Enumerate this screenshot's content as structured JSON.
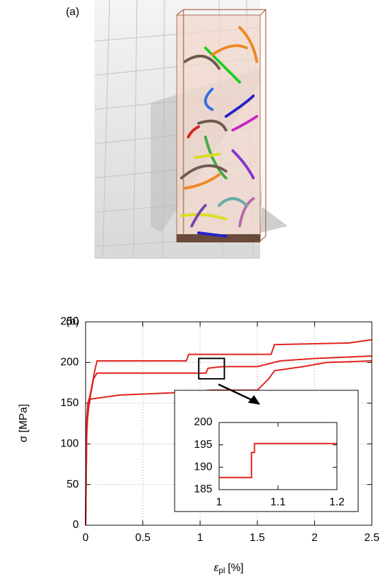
{
  "panel_labels": [
    "(a)",
    "(b)"
  ],
  "chart_data": [
    {
      "type": "line",
      "y_label": "σ [MPa]",
      "x_label": "ε",
      "x_label_subscript": "pl",
      "x_label_unit": "[%]",
      "xlim": [
        0,
        2.5
      ],
      "xticks": [
        0,
        0.5,
        1,
        1.5,
        2,
        2.5
      ],
      "ylim": [
        0,
        250
      ],
      "yticks": [
        0,
        50,
        100,
        150,
        200,
        250
      ],
      "grid": true,
      "series": [
        {
          "color": "#e0201c",
          "x": [
            0,
            0.005,
            0.01,
            0.02,
            0.04,
            0.06,
            0.08,
            0.1,
            0.88,
            0.9,
            1.62,
            1.65,
            2.3,
            2.5
          ],
          "values": [
            0,
            100,
            130,
            150,
            160,
            175,
            190,
            202,
            202,
            210,
            210,
            222,
            224,
            228
          ]
        },
        {
          "color": "#e0201c",
          "x": [
            0,
            0.01,
            0.03,
            0.05,
            0.07,
            0.1,
            1.05,
            1.07,
            1.2,
            1.5,
            1.7,
            2.0,
            2.5
          ],
          "values": [
            0,
            120,
            150,
            165,
            180,
            187,
            187,
            193,
            195,
            195,
            202,
            205,
            208
          ]
        },
        {
          "color": "#e0201c",
          "x": [
            0,
            0.01,
            0.02,
            0.04,
            0.3,
            0.8,
            1.1,
            1.5,
            1.6,
            1.65,
            1.9,
            2.1,
            2.5
          ],
          "values": [
            0,
            110,
            140,
            155,
            160,
            163,
            166,
            166,
            180,
            190,
            195,
            200,
            202
          ]
        }
      ]
    },
    {
      "type": "line",
      "xlim": [
        1,
        1.2
      ],
      "xticks": [
        1,
        1.1,
        1.2
      ],
      "ylim": [
        185,
        200
      ],
      "yticks": [
        185,
        190,
        195,
        200
      ],
      "grid": false,
      "series": [
        {
          "color": "#e0201c",
          "x": [
            1,
            1.055,
            1.055,
            1.06,
            1.06,
            1.2
          ],
          "values": [
            187.7,
            187.7,
            193.3,
            193.3,
            195.3,
            195.3
          ]
        }
      ]
    }
  ]
}
